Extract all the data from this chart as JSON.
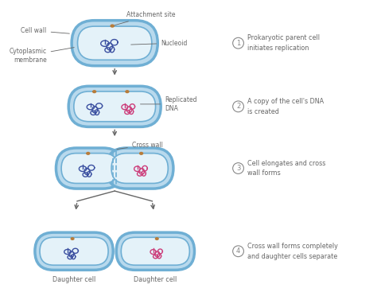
{
  "bg_color": "#ffffff",
  "cell_outer_color": "#b8d9ed",
  "cell_inner_color": "#e4f2f9",
  "cell_border_color": "#6fafd4",
  "dna_blue_color": "#3a4fa0",
  "dna_pink_color": "#cc3d7a",
  "attachment_color": "#b87c3a",
  "label_color": "#666666",
  "arrow_color": "#666666",
  "number_circle_color": "#888888",
  "step4_labels": [
    "Daughter cell",
    "Daughter cell"
  ],
  "right_labels": [
    "Prokaryotic parent cell\ninitiates replication",
    "A copy of the cell's DNA\nis created",
    "Cell elongates and cross\nwall forms",
    "Cross wall forms completely\nand daughter cells separate"
  ]
}
